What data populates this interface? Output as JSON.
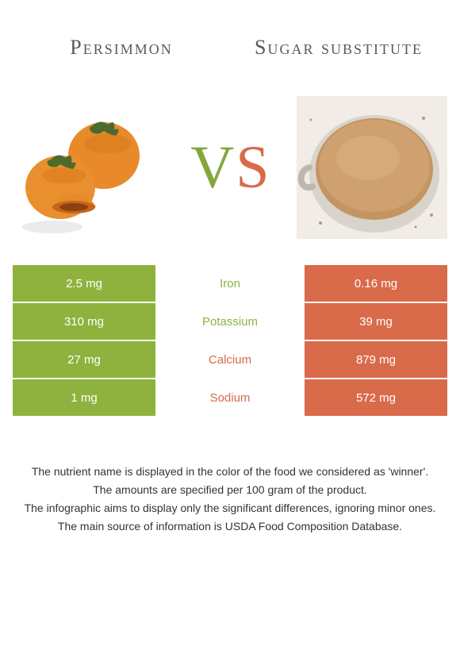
{
  "header": {
    "left_title": "Persimmon",
    "right_title": "Sugar substitute"
  },
  "vs": {
    "v": "V",
    "s": "S"
  },
  "colors": {
    "left": "#8fb23e",
    "right": "#d96a4a",
    "persimmon_fruit": "#e88a2a",
    "persimmon_leaf": "#4a6b2e",
    "sugar_bg": "#f2ece6",
    "sugar_fill": "#c49560",
    "sugar_cup": "#d8d4cc"
  },
  "table": {
    "rows": [
      {
        "left": "2.5 mg",
        "mid": "Iron",
        "right": "0.16 mg",
        "winner": "left"
      },
      {
        "left": "310 mg",
        "mid": "Potassium",
        "right": "39 mg",
        "winner": "left"
      },
      {
        "left": "27 mg",
        "mid": "Calcium",
        "right": "879 mg",
        "winner": "right"
      },
      {
        "left": "1 mg",
        "mid": "Sodium",
        "right": "572 mg",
        "winner": "right"
      }
    ]
  },
  "footer": {
    "lines": [
      "The nutrient name is displayed in the color of the food we considered as 'winner'.",
      "The amounts are specified per 100 gram of the product.",
      "The infographic aims to display only the significant differences, ignoring minor ones.",
      "The main source of information is USDA Food Composition Database."
    ]
  }
}
